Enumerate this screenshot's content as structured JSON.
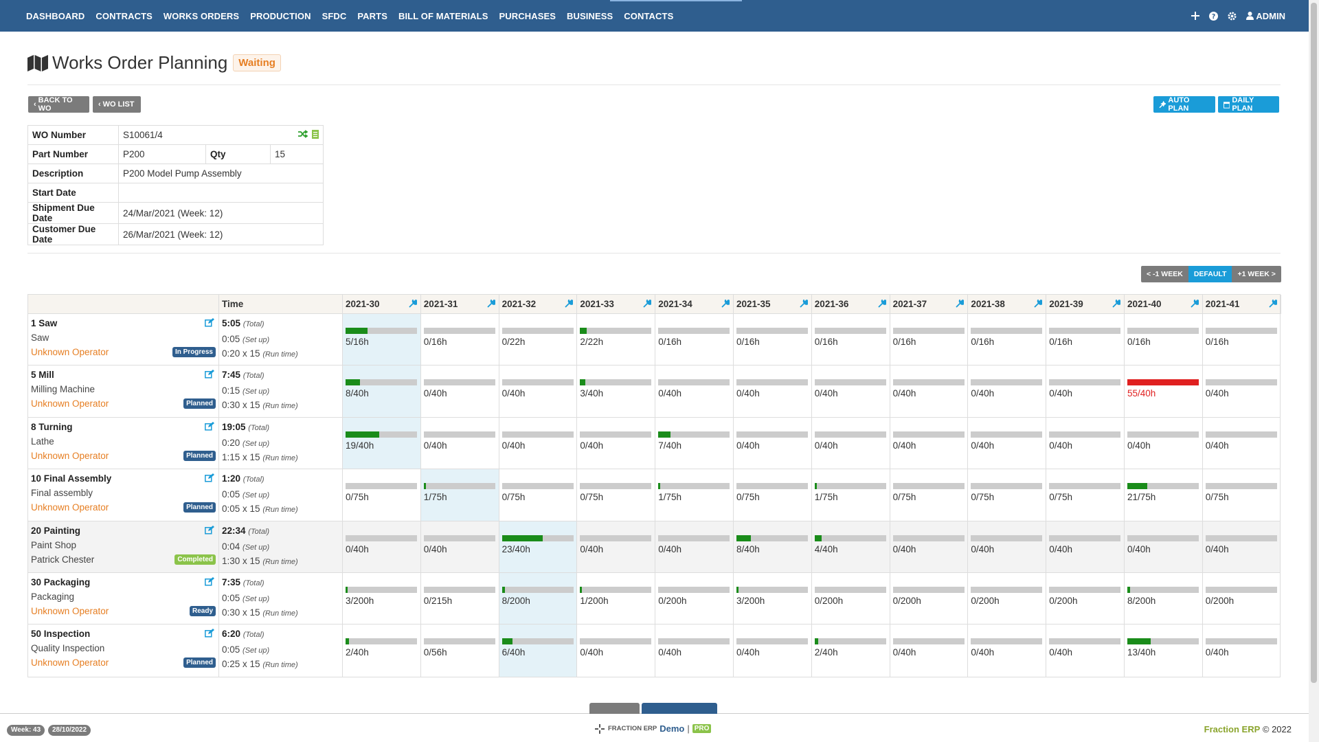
{
  "nav": {
    "items": [
      "DASHBOARD",
      "CONTRACTS",
      "WORKS ORDERS",
      "PRODUCTION",
      "SFDC",
      "PARTS",
      "BILL OF MATERIALS",
      "PURCHASES",
      "BUSINESS",
      "CONTACTS"
    ],
    "user_label": "ADMIN"
  },
  "page": {
    "title": "Works Order Planning",
    "status": "Waiting"
  },
  "buttons": {
    "back_to_wo": "BACK TO WO",
    "wo_list": "WO LIST",
    "auto_plan": "AUTO PLAN",
    "daily_plan": "DAILY PLAN"
  },
  "info": {
    "wo_number_label": "WO Number",
    "wo_number": "S10061/4",
    "part_number_label": "Part Number",
    "part_number": "P200",
    "qty_label": "Qty",
    "qty": "15",
    "description_label": "Description",
    "description": "P200 Model Pump Assembly",
    "start_date_label": "Start Date",
    "start_date": "",
    "shipment_due_label": "Shipment Due Date",
    "shipment_due": "24/Mar/2021 (Week: 12)",
    "customer_due_label": "Customer Due Date",
    "customer_due": "26/Mar/2021 (Week: 12)"
  },
  "week_nav": {
    "prev": "< -1 WEEK",
    "default": "DEFAULT",
    "next": "+1 WEEK >"
  },
  "plan": {
    "time_header": "Time",
    "weeks": [
      "2021-30",
      "2021-31",
      "2021-32",
      "2021-33",
      "2021-34",
      "2021-35",
      "2021-36",
      "2021-37",
      "2021-38",
      "2021-39",
      "2021-40",
      "2021-41"
    ],
    "total_label": "(Total)",
    "setup_label": "(Set up)",
    "runtime_label": "(Run time)",
    "operations": [
      {
        "name": "1 Saw",
        "machine": "Saw",
        "operator": "Unknown Operator",
        "status": "In Progress",
        "status_color": "#2f5e8e",
        "total": "5:05",
        "setup": "0:05",
        "run": "0:20 x 15",
        "highlight": [
          0
        ],
        "grey": false,
        "cells": [
          {
            "load": "5/16h",
            "fill": 0.31
          },
          {
            "load": "0/16h",
            "fill": 0
          },
          {
            "load": "0/22h",
            "fill": 0
          },
          {
            "load": "2/22h",
            "fill": 0.09
          },
          {
            "load": "0/16h",
            "fill": 0
          },
          {
            "load": "0/16h",
            "fill": 0
          },
          {
            "load": "0/16h",
            "fill": 0
          },
          {
            "load": "0/16h",
            "fill": 0
          },
          {
            "load": "0/16h",
            "fill": 0
          },
          {
            "load": "0/16h",
            "fill": 0
          },
          {
            "load": "0/16h",
            "fill": 0
          },
          {
            "load": "0/16h",
            "fill": 0
          }
        ]
      },
      {
        "name": "5 Mill",
        "machine": "Milling Machine",
        "operator": "Unknown Operator",
        "status": "Planned",
        "status_color": "#2f5e8e",
        "total": "7:45",
        "setup": "0:15",
        "run": "0:30 x 15",
        "highlight": [
          0
        ],
        "grey": false,
        "cells": [
          {
            "load": "8/40h",
            "fill": 0.2
          },
          {
            "load": "0/40h",
            "fill": 0
          },
          {
            "load": "0/40h",
            "fill": 0
          },
          {
            "load": "3/40h",
            "fill": 0.075
          },
          {
            "load": "0/40h",
            "fill": 0
          },
          {
            "load": "0/40h",
            "fill": 0
          },
          {
            "load": "0/40h",
            "fill": 0
          },
          {
            "load": "0/40h",
            "fill": 0
          },
          {
            "load": "0/40h",
            "fill": 0
          },
          {
            "load": "0/40h",
            "fill": 0
          },
          {
            "load": "55/40h",
            "fill": 1,
            "over": true
          },
          {
            "load": "0/40h",
            "fill": 0
          }
        ]
      },
      {
        "name": "8 Turning",
        "machine": "Lathe",
        "operator": "Unknown Operator",
        "status": "Planned",
        "status_color": "#2f5e8e",
        "total": "19:05",
        "setup": "0:20",
        "run": "1:15 x 15",
        "highlight": [
          0
        ],
        "grey": false,
        "cells": [
          {
            "load": "19/40h",
            "fill": 0.475
          },
          {
            "load": "0/40h",
            "fill": 0
          },
          {
            "load": "0/40h",
            "fill": 0
          },
          {
            "load": "0/40h",
            "fill": 0
          },
          {
            "load": "7/40h",
            "fill": 0.175
          },
          {
            "load": "0/40h",
            "fill": 0
          },
          {
            "load": "0/40h",
            "fill": 0
          },
          {
            "load": "0/40h",
            "fill": 0
          },
          {
            "load": "0/40h",
            "fill": 0
          },
          {
            "load": "0/40h",
            "fill": 0
          },
          {
            "load": "0/40h",
            "fill": 0
          },
          {
            "load": "0/40h",
            "fill": 0
          }
        ]
      },
      {
        "name": "10 Final Assembly",
        "machine": "Final assembly",
        "operator": "Unknown Operator",
        "status": "Planned",
        "status_color": "#2f5e8e",
        "total": "1:20",
        "setup": "0:05",
        "run": "0:05 x 15",
        "highlight": [
          1
        ],
        "grey": false,
        "cells": [
          {
            "load": "0/75h",
            "fill": 0
          },
          {
            "load": "1/75h",
            "fill": 0.013
          },
          {
            "load": "0/75h",
            "fill": 0
          },
          {
            "load": "0/75h",
            "fill": 0
          },
          {
            "load": "1/75h",
            "fill": 0.013
          },
          {
            "load": "0/75h",
            "fill": 0
          },
          {
            "load": "1/75h",
            "fill": 0.013
          },
          {
            "load": "0/75h",
            "fill": 0
          },
          {
            "load": "0/75h",
            "fill": 0
          },
          {
            "load": "0/75h",
            "fill": 0
          },
          {
            "load": "21/75h",
            "fill": 0.28
          },
          {
            "load": "0/75h",
            "fill": 0
          }
        ]
      },
      {
        "name": "20 Painting",
        "machine": "Paint Shop",
        "operator": "Patrick Chester",
        "status": "Completed",
        "status_color": "#8bc34a",
        "total": "22:34",
        "setup": "0:04",
        "run": "1:30 x 15",
        "highlight": [
          2
        ],
        "grey": true,
        "cells": [
          {
            "load": "0/40h",
            "fill": 0
          },
          {
            "load": "0/40h",
            "fill": 0
          },
          {
            "load": "23/40h",
            "fill": 0.575
          },
          {
            "load": "0/40h",
            "fill": 0
          },
          {
            "load": "0/40h",
            "fill": 0
          },
          {
            "load": "8/40h",
            "fill": 0.2
          },
          {
            "load": "4/40h",
            "fill": 0.1
          },
          {
            "load": "0/40h",
            "fill": 0
          },
          {
            "load": "0/40h",
            "fill": 0
          },
          {
            "load": "0/40h",
            "fill": 0
          },
          {
            "load": "0/40h",
            "fill": 0
          },
          {
            "load": "0/40h",
            "fill": 0
          }
        ]
      },
      {
        "name": "30 Packaging",
        "machine": "Packaging",
        "operator": "Unknown Operator",
        "status": "Ready",
        "status_color": "#2f5e8e",
        "total": "7:35",
        "setup": "0:05",
        "run": "0:30 x 15",
        "highlight": [
          2
        ],
        "grey": false,
        "cells": [
          {
            "load": "3/200h",
            "fill": 0.015
          },
          {
            "load": "0/215h",
            "fill": 0
          },
          {
            "load": "8/200h",
            "fill": 0.04
          },
          {
            "load": "1/200h",
            "fill": 0.005
          },
          {
            "load": "0/200h",
            "fill": 0
          },
          {
            "load": "3/200h",
            "fill": 0.015
          },
          {
            "load": "0/200h",
            "fill": 0
          },
          {
            "load": "0/200h",
            "fill": 0
          },
          {
            "load": "0/200h",
            "fill": 0
          },
          {
            "load": "0/200h",
            "fill": 0
          },
          {
            "load": "8/200h",
            "fill": 0.04
          },
          {
            "load": "0/200h",
            "fill": 0
          }
        ]
      },
      {
        "name": "50 Inspection",
        "machine": "Quality Inspection",
        "operator": "Unknown Operator",
        "status": "Planned",
        "status_color": "#2f5e8e",
        "total": "6:20",
        "setup": "0:05",
        "run": "0:25 x 15",
        "highlight": [
          2
        ],
        "grey": false,
        "cells": [
          {
            "load": "2/40h",
            "fill": 0.05
          },
          {
            "load": "0/56h",
            "fill": 0
          },
          {
            "load": "6/40h",
            "fill": 0.15
          },
          {
            "load": "0/40h",
            "fill": 0
          },
          {
            "load": "0/40h",
            "fill": 0
          },
          {
            "load": "0/40h",
            "fill": 0
          },
          {
            "load": "2/40h",
            "fill": 0.05
          },
          {
            "load": "0/40h",
            "fill": 0
          },
          {
            "load": "0/40h",
            "fill": 0
          },
          {
            "load": "0/40h",
            "fill": 0
          },
          {
            "load": "13/40h",
            "fill": 0.325
          },
          {
            "load": "0/40h",
            "fill": 0
          }
        ]
      }
    ]
  },
  "footer": {
    "week": "Week: 43",
    "date": "28/10/2022",
    "brand_small": "FRACTION ERP",
    "demo": "Demo",
    "separator": "|",
    "pro": "PRO",
    "brand": "Fraction ERP",
    "copyright": "© 2022"
  },
  "colors": {
    "nav_bg": "#2f5e8e",
    "accent_blue": "#1a9cd8",
    "ok_green": "#1a8c1a",
    "over_red": "#e02020",
    "operator_orange": "#e67e22"
  }
}
